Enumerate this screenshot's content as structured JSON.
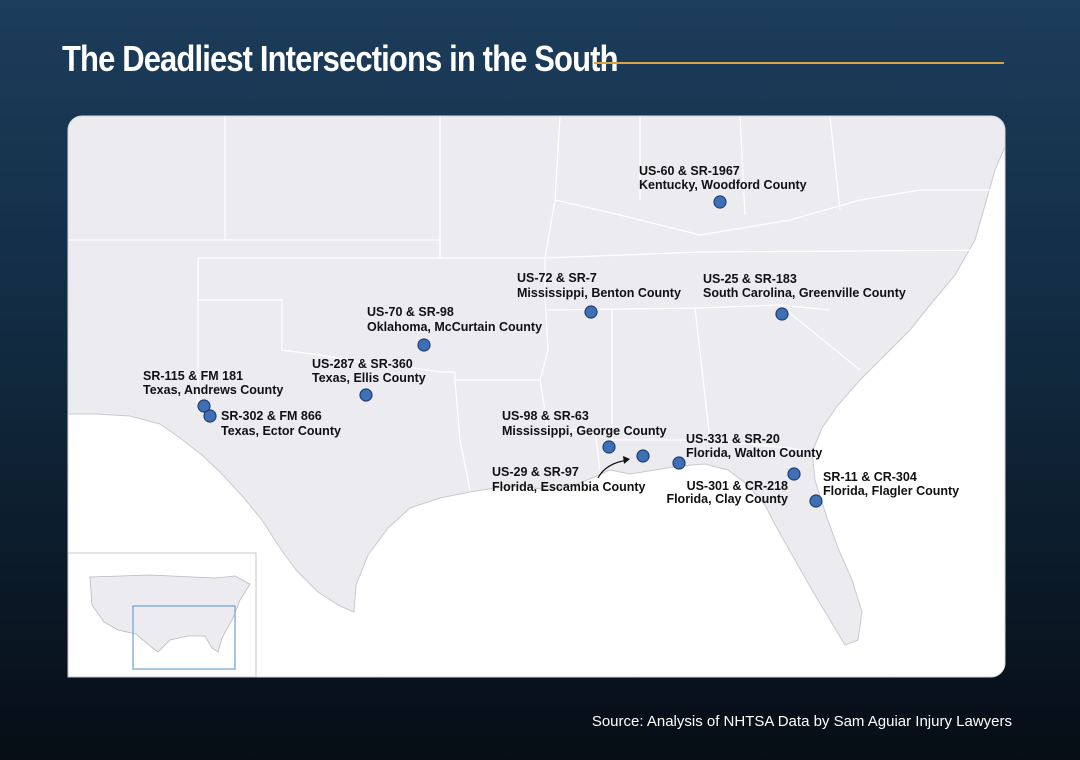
{
  "header": {
    "title": "The Deadliest Intersections in the South"
  },
  "markers": [
    {
      "road": "US-60 & SR-1967",
      "place": "Kentucky, Woodford County"
    },
    {
      "road": "US-72 & SR-7",
      "place": "Mississippi, Benton County"
    },
    {
      "road": "US-25 & SR-183",
      "place": "South Carolina, Greenville County"
    },
    {
      "road": "US-70 & SR-98",
      "place": "Oklahoma, McCurtain County"
    },
    {
      "road": "US-287 & SR-360",
      "place": "Texas, Ellis County"
    },
    {
      "road": "SR-115 & FM 181",
      "place": "Texas, Andrews County"
    },
    {
      "road": "SR-302 & FM 866",
      "place": "Texas, Ector County"
    },
    {
      "road": "US-98 & SR-63",
      "place": "Mississippi, George County"
    },
    {
      "road": "US-331 & SR-20",
      "place": "Florida, Walton County"
    },
    {
      "road": "US-29 & SR-97",
      "place": "Florida, Escambia County"
    },
    {
      "road": "US-301 & CR-218",
      "place": "Florida, Clay County"
    },
    {
      "road": "SR-11 & CR-304",
      "place": "Florida, Flagler County"
    }
  ],
  "footer": {
    "source": "Source: Analysis of NHTSA Data by Sam Aguiar Injury Lawyers"
  }
}
